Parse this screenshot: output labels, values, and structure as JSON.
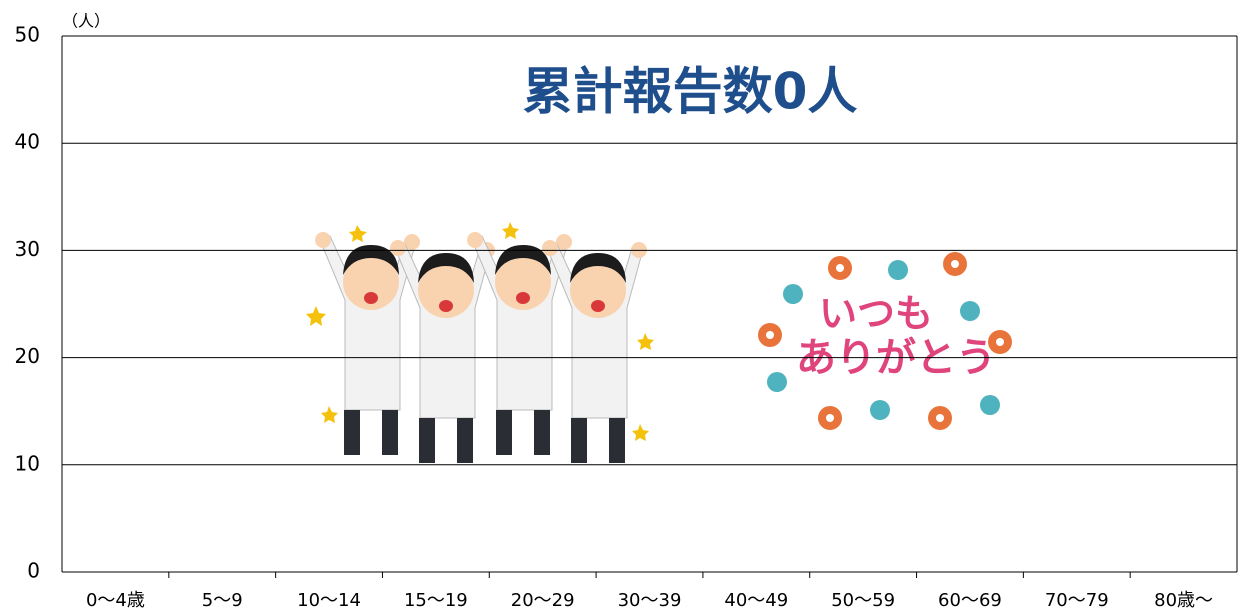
{
  "chart_data": {
    "type": "bar",
    "title": "累計報告数0人",
    "y_unit": "（人）",
    "categories": [
      "0～4歳",
      "5～9",
      "10～14",
      "15～19",
      "20～29",
      "30～39",
      "40～49",
      "50～59",
      "60～69",
      "70～79",
      "80歳～"
    ],
    "values": [
      0,
      0,
      0,
      0,
      0,
      0,
      0,
      0,
      0,
      0,
      0
    ],
    "ylim": [
      0,
      50
    ],
    "yticks": [
      0,
      10,
      20,
      30,
      40,
      50
    ],
    "grid": true,
    "annotations": [
      "いつも",
      "ありがとう"
    ]
  }
}
